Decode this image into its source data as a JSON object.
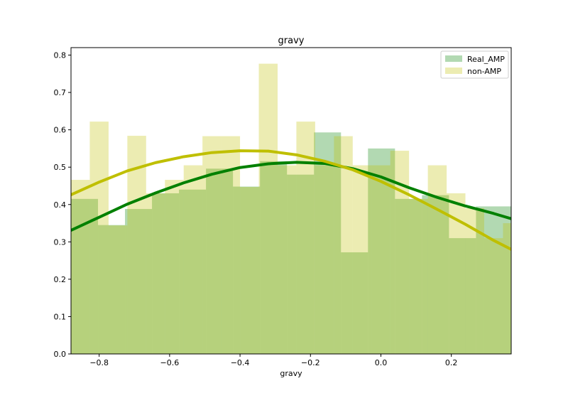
{
  "chart_data": {
    "type": "bar",
    "title": "gravy",
    "xlabel": "gravy",
    "ylabel": "",
    "xlim": [
      -0.88,
      0.37
    ],
    "ylim": [
      0.0,
      0.82
    ],
    "xticks": [
      "−0.8",
      "−0.6",
      "−0.4",
      "−0.2",
      "0.0",
      "0.2"
    ],
    "xtick_values": [
      -0.8,
      -0.6,
      -0.4,
      -0.2,
      0.0,
      0.2
    ],
    "yticks": [
      "0.0",
      "0.1",
      "0.2",
      "0.3",
      "0.4",
      "0.5",
      "0.6",
      "0.7",
      "0.8"
    ],
    "ytick_values": [
      0.0,
      0.1,
      0.2,
      0.3,
      0.4,
      0.5,
      0.6,
      0.7,
      0.8
    ],
    "grid": false,
    "legend_position": "top-right",
    "colors": {
      "real_amp": "#008000",
      "non_amp": "#bfbf00"
    },
    "series": [
      {
        "name": "Real_AMP",
        "bin_edges": [
          -0.88,
          -0.8033,
          -0.7267,
          -0.65,
          -0.5733,
          -0.4967,
          -0.42,
          -0.3433,
          -0.2667,
          -0.19,
          -0.1133,
          -0.0367,
          0.04,
          0.1167,
          0.1933,
          0.27,
          0.37
        ],
        "values": [
          0.415,
          0.345,
          0.388,
          0.43,
          0.44,
          0.496,
          0.448,
          0.516,
          0.48,
          0.593,
          0.272,
          0.55,
          0.415,
          0.425,
          0.31,
          0.395
        ],
        "kde_x": [
          -0.88,
          -0.8,
          -0.72,
          -0.64,
          -0.56,
          -0.48,
          -0.4,
          -0.32,
          -0.24,
          -0.16,
          -0.08,
          0.0,
          0.08,
          0.16,
          0.24,
          0.32,
          0.37
        ],
        "kde_y": [
          0.331,
          0.366,
          0.401,
          0.431,
          0.458,
          0.481,
          0.499,
          0.509,
          0.513,
          0.51,
          0.496,
          0.474,
          0.445,
          0.419,
          0.396,
          0.376,
          0.362
        ]
      },
      {
        "name": "non-AMP",
        "bin_edges": [
          -0.88,
          -0.8267,
          -0.7733,
          -0.72,
          -0.6667,
          -0.6133,
          -0.56,
          -0.5067,
          -0.4533,
          -0.4,
          -0.3467,
          -0.2933,
          -0.24,
          -0.1867,
          -0.1333,
          -0.08,
          -0.0267,
          0.0267,
          0.08,
          0.1333,
          0.1867,
          0.24,
          0.2933,
          0.3467,
          0.37
        ],
        "values": [
          0.466,
          0.622,
          0.344,
          0.584,
          0.43,
          0.466,
          0.505,
          0.583,
          0.583,
          0.447,
          0.777,
          0.505,
          0.622,
          0.505,
          0.583,
          0.505,
          0.505,
          0.544,
          0.415,
          0.505,
          0.43,
          0.39,
          0.31,
          0.35
        ],
        "kde_x": [
          -0.88,
          -0.8,
          -0.72,
          -0.64,
          -0.56,
          -0.48,
          -0.4,
          -0.32,
          -0.24,
          -0.16,
          -0.08,
          0.0,
          0.08,
          0.16,
          0.24,
          0.32,
          0.37
        ],
        "kde_y": [
          0.426,
          0.46,
          0.49,
          0.512,
          0.528,
          0.539,
          0.544,
          0.543,
          0.533,
          0.516,
          0.493,
          0.462,
          0.426,
          0.387,
          0.347,
          0.304,
          0.28
        ]
      }
    ]
  }
}
